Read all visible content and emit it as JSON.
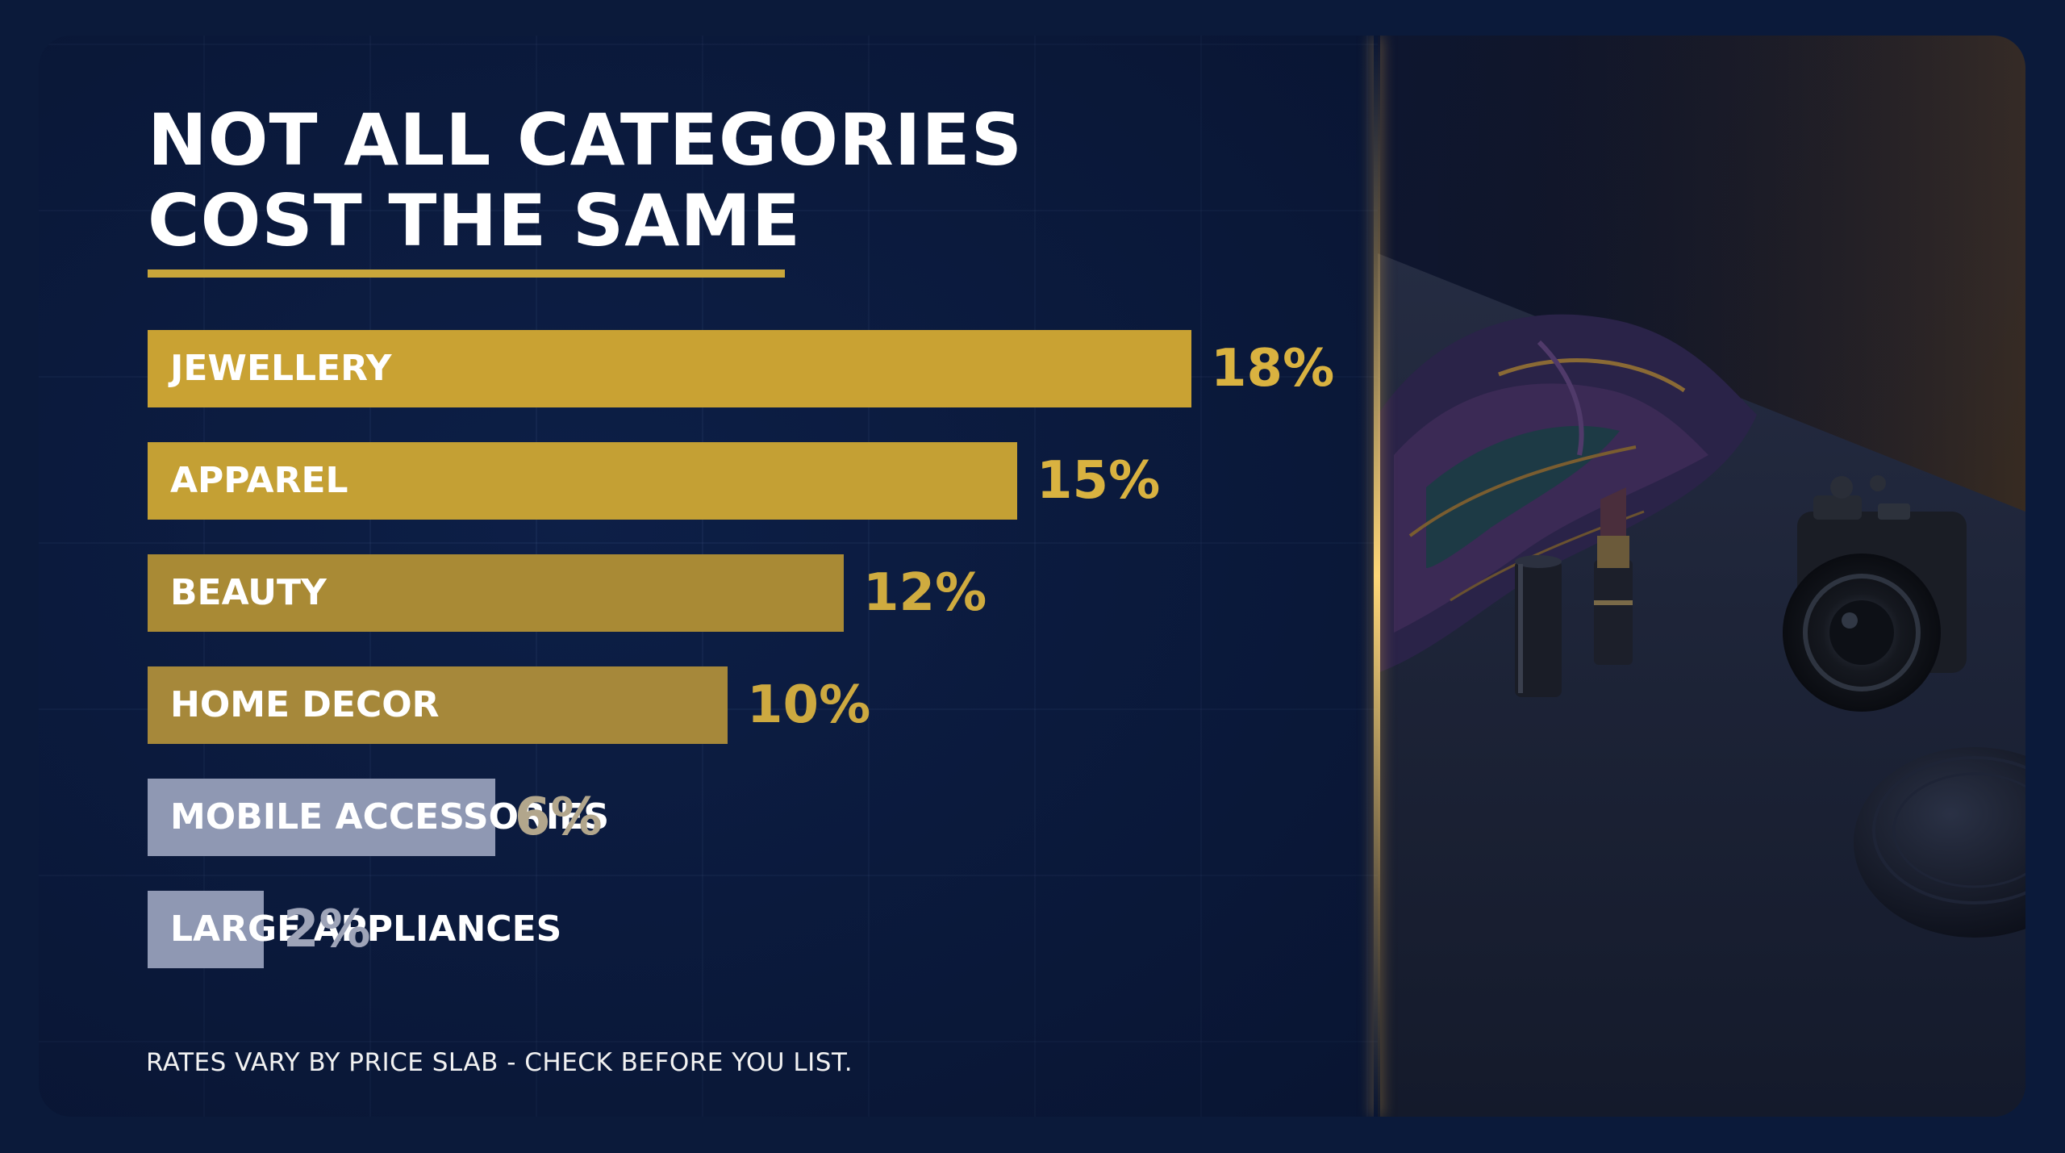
{
  "title": "NOT ALL CATEGORIES\nCOST THE SAME",
  "footnote": "RATES VARY BY PRICE SLAB - CHECK BEFORE YOU LIST.",
  "colors": {
    "accent": "#c9a63a",
    "muted_bar": "#8f98b3"
  },
  "chart_data": {
    "type": "bar",
    "orientation": "horizontal",
    "title": "NOT ALL CATEGORIES COST THE SAME",
    "categories": [
      "JEWELLERY",
      "APPAREL",
      "BEAUTY",
      "HOME DECOR",
      "MOBILE ACCESSORIES",
      "LARGE APPLIANCES"
    ],
    "values": [
      18,
      15,
      12,
      10,
      6,
      2
    ],
    "value_labels": [
      "18%",
      "15%",
      "12%",
      "10%",
      "6%",
      "2%"
    ],
    "unit": "%",
    "xlim": [
      0,
      18
    ],
    "grid": false,
    "legend": "none",
    "bar_colors": [
      "#c9a233",
      "#c4a034",
      "#a98a35",
      "#a6883a",
      "#8f98b3",
      "#8f98b3"
    ],
    "value_colors": [
      "#d9b240",
      "#d9b240",
      "#cfab3f",
      "#cda940",
      "#b2a68c",
      "#9ea4b8"
    ]
  }
}
